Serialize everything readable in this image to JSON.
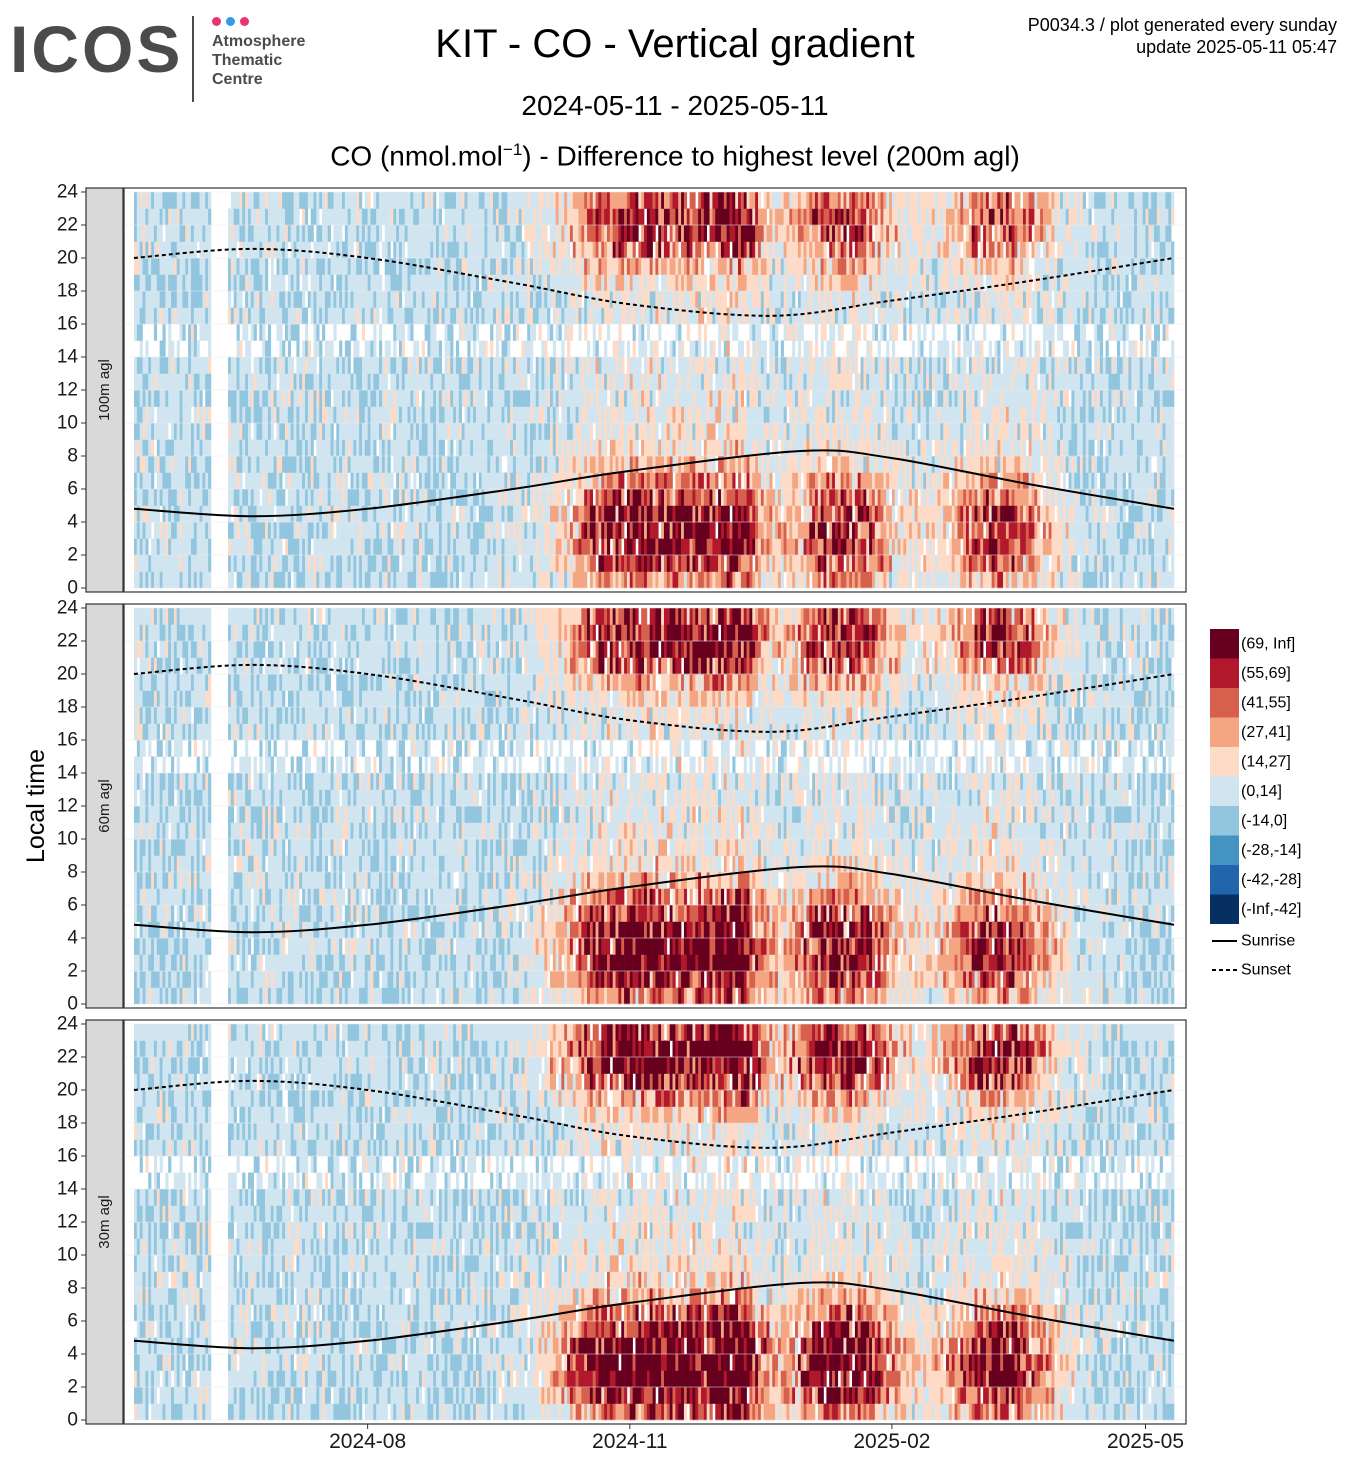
{
  "header": {
    "logo_text": "ICOS",
    "logo_lines": [
      "Atmosphere",
      "Thematic",
      "Centre"
    ],
    "logo_dot_colors": [
      "#e6366d",
      "#2f9de6",
      "#e6366d"
    ],
    "title": "KIT - CO - Vertical gradient",
    "date_range": "2024-05-11 - 2025-05-11",
    "subtitle_pre": "CO (nmol.mol",
    "subtitle_sup": "−1",
    "subtitle_post": ") - Difference to highest level (200m agl)",
    "meta_line1": "P0034.3 / plot generated every sunday",
    "meta_line2": "update  2025-05-11 05:47"
  },
  "chart_data": {
    "type": "heatmap",
    "ylabel": "Local time",
    "xlim": [
      "2024-05-11",
      "2025-05-11"
    ],
    "ylim": [
      0,
      24
    ],
    "y_ticks": [
      0,
      2,
      4,
      6,
      8,
      10,
      12,
      14,
      16,
      18,
      20,
      22,
      24
    ],
    "x_ticks": [
      {
        "date": "2024-08-01",
        "label": "2024-08"
      },
      {
        "date": "2024-11-01",
        "label": "2024-11"
      },
      {
        "date": "2025-02-01",
        "label": "2025-02"
      },
      {
        "date": "2025-05-01",
        "label": "2025-05"
      }
    ],
    "grid": true,
    "panels": [
      {
        "label": "100m agl",
        "level_m": 100
      },
      {
        "label": "60m agl",
        "level_m": 60
      },
      {
        "label": "30m agl",
        "level_m": 30
      }
    ],
    "color_classes": [
      {
        "label": "(69, Inf]",
        "color": "#67001f"
      },
      {
        "label": "(55,69]",
        "color": "#b2182b"
      },
      {
        "label": "(41,55]",
        "color": "#d6604d"
      },
      {
        "label": "(27,41]",
        "color": "#f4a582"
      },
      {
        "label": "(14,27]",
        "color": "#fddbc7"
      },
      {
        "label": "(0,14]",
        "color": "#d1e5f0"
      },
      {
        "label": "(-14,0]",
        "color": "#92c5de"
      },
      {
        "label": "(-28,-14]",
        "color": "#4393c3"
      },
      {
        "label": "(-42,-28]",
        "color": "#2166ac"
      },
      {
        "label": "(-Inf,-42]",
        "color": "#053061"
      }
    ],
    "line_legend": [
      {
        "label": "Sunrise",
        "style": "solid"
      },
      {
        "label": "Sunset",
        "style": "dashed"
      }
    ],
    "sunrise": {
      "dates": [
        "2024-05-11",
        "2024-06-21",
        "2024-08-01",
        "2024-09-21",
        "2024-11-01",
        "2024-12-31",
        "2025-01-31",
        "2025-03-21",
        "2025-05-11"
      ],
      "hours": [
        4.8,
        4.35,
        4.8,
        6.0,
        7.1,
        8.3,
        7.9,
        6.3,
        4.8
      ]
    },
    "sunset": {
      "dates": [
        "2024-05-11",
        "2024-06-21",
        "2024-08-01",
        "2024-09-21",
        "2024-11-01",
        "2024-12-21",
        "2025-01-31",
        "2025-03-21",
        "2025-05-11"
      ],
      "hours": [
        20.0,
        20.55,
        20.0,
        18.5,
        17.2,
        16.5,
        17.4,
        18.6,
        20.0
      ]
    }
  }
}
